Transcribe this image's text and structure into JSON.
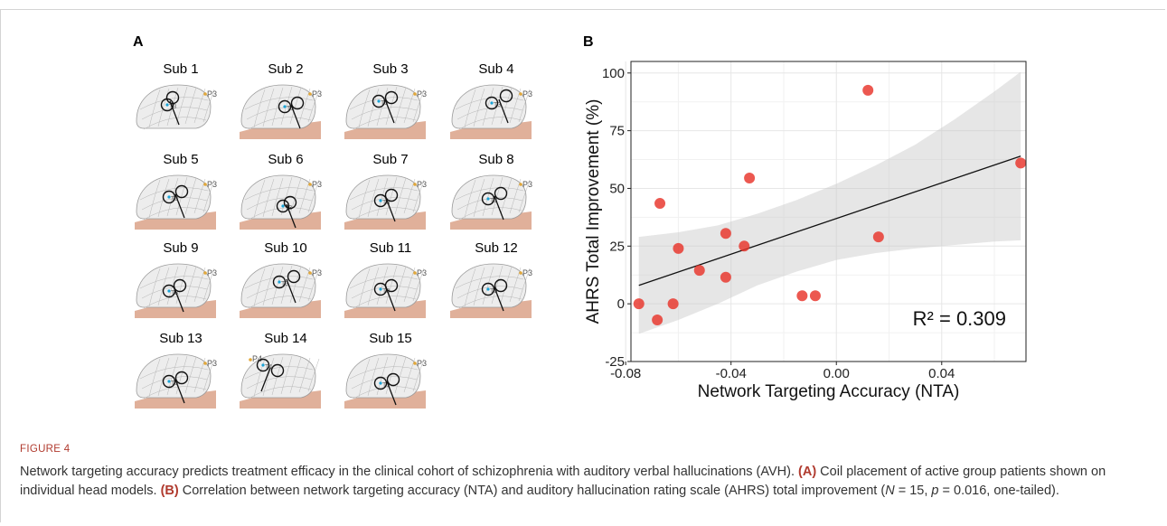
{
  "panel_a": {
    "letter": "A",
    "subjects": [
      "Sub 1",
      "Sub 2",
      "Sub 3",
      "Sub 4",
      "Sub 5",
      "Sub 6",
      "Sub 7",
      "Sub 8",
      "Sub 9",
      "Sub 10",
      "Sub 11",
      "Sub 12",
      "Sub 13",
      "Sub 14",
      "Sub 15"
    ],
    "electrode_labels": [
      "P3",
      "P3",
      "P3",
      "P3",
      "P3",
      "P3",
      "P3",
      "P3",
      "P3",
      "P3",
      "P3",
      "P3",
      "P3",
      "P4",
      "P3"
    ],
    "inner_labels": [
      "T3",
      "T3",
      "T3",
      "T3",
      "T3",
      "T3",
      "T3",
      "T3",
      "T3",
      "T3",
      "T3",
      "T3",
      "T3",
      "T4",
      "T3"
    ]
  },
  "panel_b": {
    "letter": "B"
  },
  "chart_data": {
    "type": "scatter",
    "xlabel": "Network Targeting Accuracy (NTA)",
    "ylabel": "AHRS Total Improvement (%)",
    "xlim": [
      -0.078,
      0.072
    ],
    "ylim": [
      -25,
      105
    ],
    "x_ticks": [
      -0.08,
      -0.04,
      0.0,
      0.04
    ],
    "x_tick_labels": [
      "-0.08",
      "-0.04",
      "0.00",
      "0.04"
    ],
    "y_ticks": [
      -25,
      0,
      25,
      50,
      75,
      100
    ],
    "y_tick_labels": [
      "-25",
      "0",
      "25",
      "50",
      "75",
      "100"
    ],
    "grid": true,
    "annotation": "R² = 0.309",
    "point_color": "#e8332a",
    "points": [
      {
        "x": -0.075,
        "y": 0
      },
      {
        "x": -0.068,
        "y": -7
      },
      {
        "x": -0.067,
        "y": 43.5
      },
      {
        "x": -0.062,
        "y": 0
      },
      {
        "x": -0.06,
        "y": 24
      },
      {
        "x": -0.052,
        "y": 14.5
      },
      {
        "x": -0.042,
        "y": 30.5
      },
      {
        "x": -0.042,
        "y": 11.5
      },
      {
        "x": -0.035,
        "y": 25
      },
      {
        "x": -0.033,
        "y": 54.5
      },
      {
        "x": -0.013,
        "y": 3.5
      },
      {
        "x": -0.008,
        "y": 3.5
      },
      {
        "x": 0.012,
        "y": 92.5
      },
      {
        "x": 0.016,
        "y": 29
      },
      {
        "x": 0.07,
        "y": 61
      }
    ],
    "fit_line": {
      "x": [
        -0.075,
        0.07
      ],
      "y": [
        8,
        64
      ]
    },
    "confidence_band": {
      "x": [
        -0.075,
        -0.06,
        -0.045,
        -0.03,
        -0.015,
        0.0,
        0.015,
        0.03,
        0.045,
        0.06,
        0.07
      ],
      "lower": [
        -13,
        -7,
        0,
        8,
        14,
        19,
        22,
        24,
        25.5,
        27,
        27.5
      ],
      "upper": [
        29,
        31,
        34,
        39,
        45,
        52,
        60,
        69,
        80,
        92,
        100.5
      ]
    }
  },
  "figure": {
    "label": "FIGURE 4",
    "caption_main": "Network targeting accuracy predicts treatment efficacy in the clinical cohort of schizophrenia with auditory verbal hallucinations (AVH). ",
    "caption_a_tag": "(A)",
    "caption_a": " Coil placement of active group patients shown on individual head models. ",
    "caption_b_tag": "(B)",
    "caption_b_1": " Correlation between network targeting accuracy (NTA) and auditory hallucination rating scale (AHRS) total improvement (",
    "caption_n": "N",
    "caption_b_2": " = 15, ",
    "caption_p": "p",
    "caption_b_3": " = 0.016, one-tailed)."
  }
}
